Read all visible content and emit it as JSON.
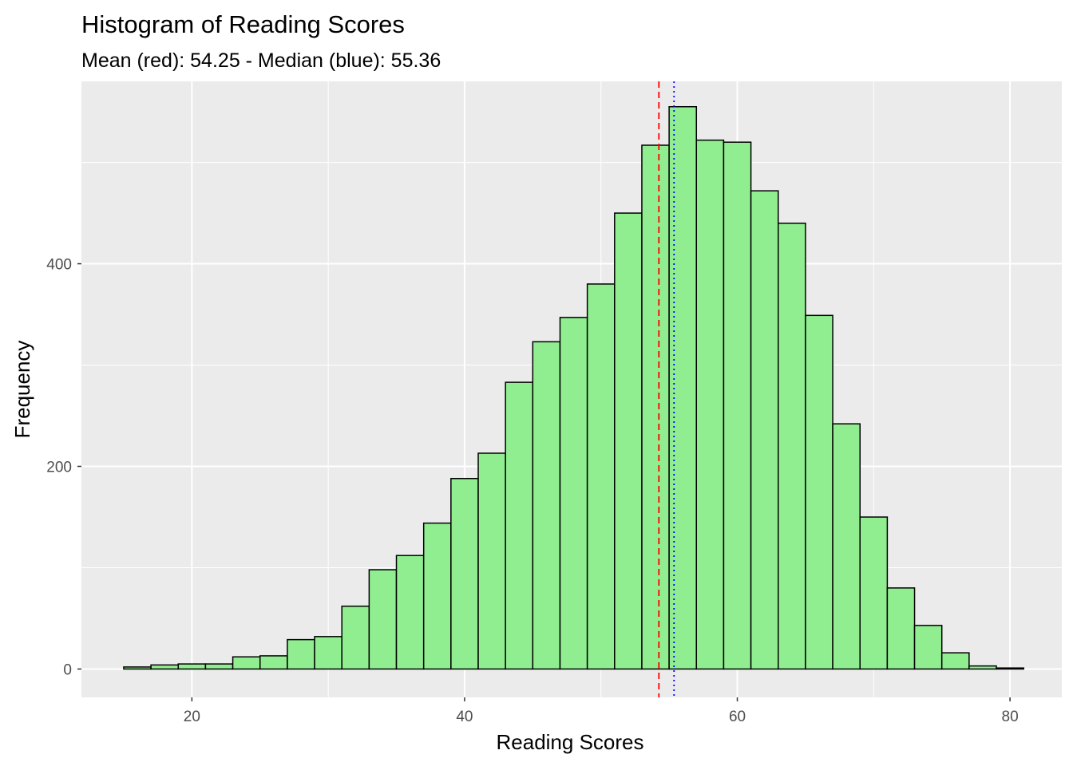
{
  "chart_data": {
    "type": "bar",
    "title": "Histogram of Reading Scores",
    "subtitle": "Mean (red): 54.25 - Median (blue): 55.36",
    "xlabel": "Reading Scores",
    "ylabel": "Frequency",
    "xlim": [
      11.9,
      83.8
    ],
    "ylim": [
      -28,
      580
    ],
    "x_ticks": [
      20,
      40,
      60,
      80
    ],
    "y_ticks": [
      0,
      200,
      400
    ],
    "bin_width": 2,
    "bins_start": [
      15,
      17,
      19,
      21,
      23,
      25,
      27,
      29,
      31,
      33,
      35,
      37,
      39,
      41,
      43,
      45,
      47,
      49,
      51,
      53,
      55,
      57,
      59,
      61,
      63,
      65,
      67,
      69,
      71,
      73,
      75,
      77,
      79
    ],
    "values": [
      2,
      4,
      5,
      5,
      12,
      13,
      29,
      32,
      62,
      98,
      112,
      144,
      188,
      213,
      283,
      323,
      347,
      380,
      450,
      517,
      555,
      522,
      520,
      472,
      440,
      349,
      242,
      150,
      80,
      43,
      16,
      3,
      1
    ],
    "mean": 54.25,
    "median": 55.36,
    "colors": {
      "bar_fill": "#90ee90",
      "bar_stroke": "#000000",
      "mean_line": "#ff0000",
      "median_line": "#0000ff",
      "panel_bg": "#ebebeb",
      "grid": "#ffffff"
    },
    "grid": true,
    "legend": "none"
  }
}
